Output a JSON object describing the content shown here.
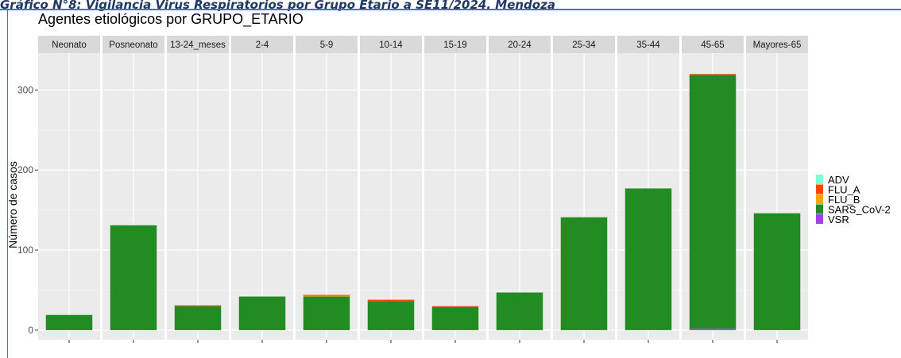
{
  "document": {
    "caption": "Gráfico N°8: Vigilancia Virus Respiratorios por Grupo Etario a SE11/2024. Mendoza"
  },
  "chart_data": {
    "type": "bar",
    "stacked": true,
    "faceted": true,
    "title": "Agentes etiológicos por GRUPO_ETARIO",
    "xlabel": "",
    "ylabel": "Número de casos",
    "ylim": [
      -12,
      346
    ],
    "yticks": [
      0,
      100,
      200,
      300
    ],
    "grid": true,
    "legend_position": "right",
    "categories": [
      "Neonato",
      "Posneonato",
      "13-24_meses",
      "2-4",
      "5-9",
      "10-14",
      "15-19",
      "20-24",
      "25-34",
      "35-44",
      "45-65",
      "Mayores-65"
    ],
    "series": [
      {
        "name": "VSR",
        "color": "#a13fe8",
        "values": [
          0,
          0,
          0,
          0,
          0,
          0,
          0,
          0,
          0,
          0,
          2,
          0
        ]
      },
      {
        "name": "SARS_CoV-2",
        "color": "#228b22",
        "values": [
          19,
          131,
          30,
          42,
          42,
          36,
          29,
          47,
          141,
          177,
          317,
          146
        ]
      },
      {
        "name": "FLU_B",
        "color": "#ffa500",
        "values": [
          0,
          0,
          0,
          0,
          1,
          0,
          0,
          0,
          0,
          0,
          0,
          0
        ]
      },
      {
        "name": "FLU_A",
        "color": "#ff4500",
        "values": [
          0,
          0,
          1,
          0,
          1,
          2,
          1,
          0,
          0,
          0,
          1,
          0
        ]
      },
      {
        "name": "ADV",
        "color": "#7fffd4",
        "values": [
          0,
          0,
          0,
          0,
          0,
          0,
          0,
          0,
          0,
          0,
          0,
          0
        ]
      }
    ],
    "legend_order": [
      "ADV",
      "FLU_A",
      "FLU_B",
      "SARS_CoV-2",
      "VSR"
    ]
  }
}
